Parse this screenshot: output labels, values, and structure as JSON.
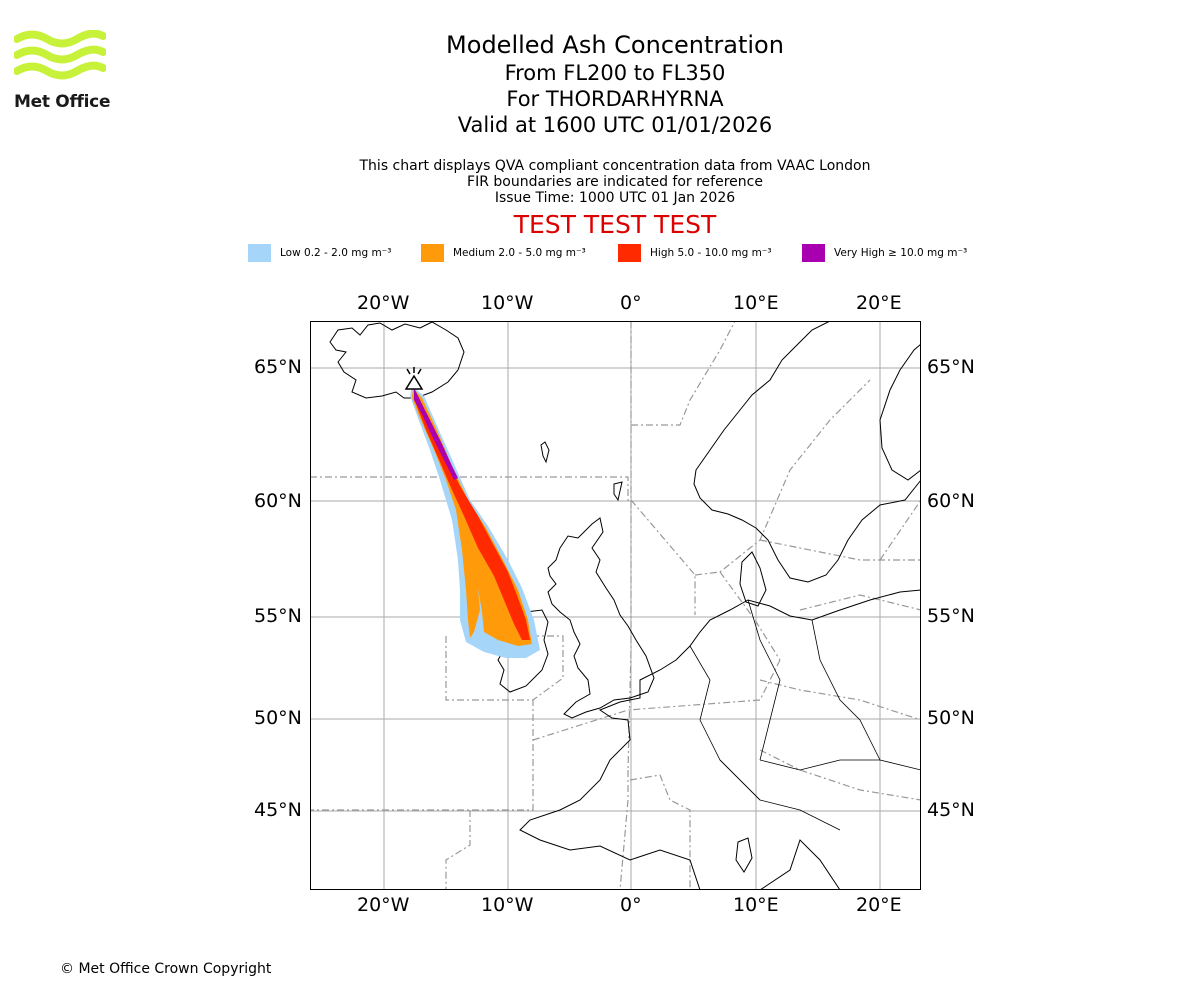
{
  "logo": {
    "text": "Met Office",
    "color": "#c8f23a"
  },
  "title": {
    "main": "Modelled Ash Concentration",
    "levels": "From FL200 to FL350",
    "volcano": "For THORDARHYRNA",
    "valid": "Valid at 1600 UTC 01/01/2026"
  },
  "subtitle": {
    "line1": "This chart displays QVA compliant concentration data from VAAC London",
    "line2": "FIR boundaries are indicated for reference",
    "line3": "Issue Time: 1000 UTC 01 Jan 2026"
  },
  "test_banner": {
    "text": "TEST TEST TEST",
    "color": "#dd0000"
  },
  "legend": [
    {
      "label": "Low 0.2 - 2.0 mg m⁻³",
      "color": "#a6d5fa"
    },
    {
      "label": "Medium 2.0 - 5.0 mg m⁻³",
      "color": "#ff9a0a"
    },
    {
      "label": "High 5.0 - 10.0 mg m⁻³",
      "color": "#ff2a00"
    },
    {
      "label": "Very High ≥ 10.0 mg m⁻³",
      "color": "#a800b0"
    }
  ],
  "map": {
    "lon_ticks": [
      "20°W",
      "10°W",
      "0°",
      "10°E",
      "20°E"
    ],
    "lat_ticks": [
      "65°N",
      "60°N",
      "55°N",
      "50°N",
      "45°N"
    ],
    "volcano_marker": "volcano-icon"
  },
  "footer": {
    "copyright": "© Met Office Crown Copyright"
  }
}
